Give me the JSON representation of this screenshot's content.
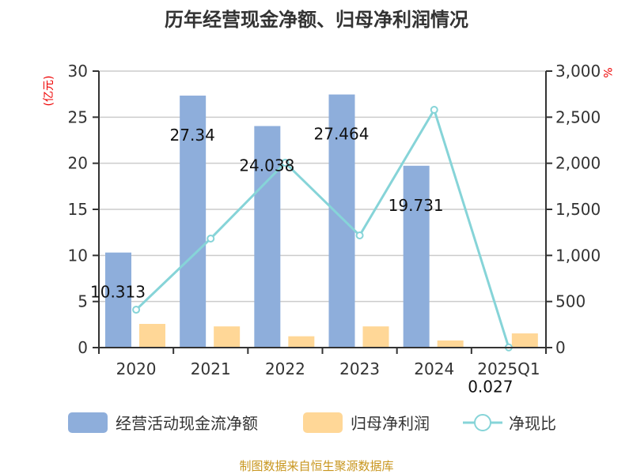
{
  "chart_data": {
    "type": "bar",
    "title": "历年经营现金净额、归母净利润情况",
    "categories": [
      "2020",
      "2021",
      "2022",
      "2023",
      "2024",
      "2025Q1"
    ],
    "series": [
      {
        "name": "经营活动现金流净额",
        "type": "bar",
        "axis": "left",
        "color": "#8eaedb",
        "values": [
          10.313,
          27.34,
          24.038,
          27.464,
          19.731,
          0.027
        ],
        "labels": [
          "10.313",
          "27.34",
          "24.038",
          "27.464",
          "19.731",
          "0.027"
        ]
      },
      {
        "name": "归母净利润",
        "type": "bar",
        "axis": "left",
        "color": "#ffd797",
        "values": [
          2.57,
          2.3,
          1.23,
          2.3,
          0.77,
          1.54
        ]
      },
      {
        "name": "净现比",
        "type": "line",
        "axis": "right",
        "color": "#86d4d8",
        "values": [
          411,
          1183,
          2006,
          1217,
          2580,
          2
        ]
      }
    ],
    "ylabel_left": "(亿元)",
    "ylabel_right": "%",
    "ylim_left": [
      0,
      30
    ],
    "ylim_right": [
      0,
      3000
    ],
    "yticks_left": [
      "0",
      "5",
      "10",
      "15",
      "20",
      "25",
      "30"
    ],
    "yticks_right": [
      "0",
      "500",
      "1,000",
      "1,500",
      "2,000",
      "2,500",
      "3,000"
    ],
    "grid": true,
    "legend": "bottom",
    "source": "制图数据来自恒生聚源数据库"
  }
}
